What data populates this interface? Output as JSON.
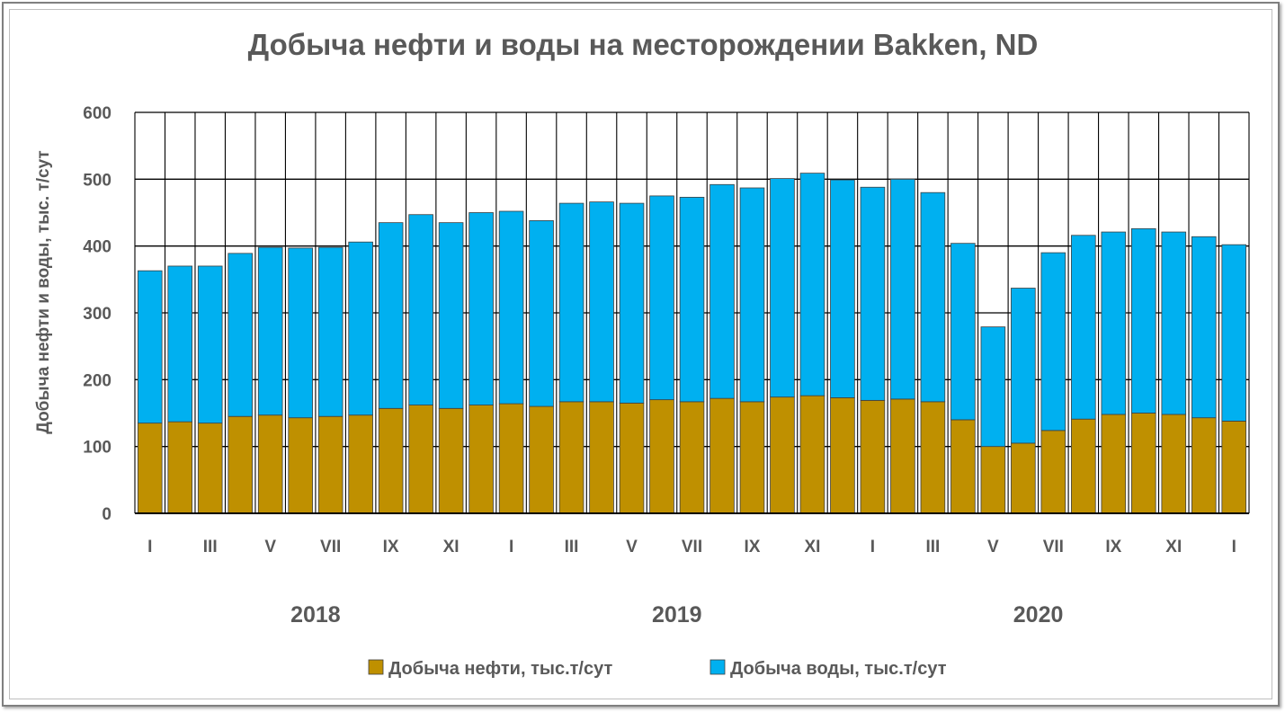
{
  "chart_data": {
    "type": "bar",
    "stacked": true,
    "title": "Добыча нефти и воды на месторождении Bakken, ND",
    "ylabel": "Добыча нефти и воды, тыс. т/сут",
    "xlabel": "",
    "ylim": [
      0,
      600
    ],
    "yticks": [
      0,
      100,
      200,
      300,
      400,
      500,
      600
    ],
    "grid": true,
    "legend_position": "bottom",
    "x_tick_labels": [
      "I",
      "III",
      "V",
      "VII",
      "IX",
      "XI",
      "I",
      "III",
      "V",
      "VII",
      "IX",
      "XI",
      "I",
      "III",
      "V",
      "VII",
      "IX",
      "XI",
      "I"
    ],
    "years": [
      "2018",
      "2019",
      "2020"
    ],
    "categories": [
      "2018-01",
      "2018-02",
      "2018-03",
      "2018-04",
      "2018-05",
      "2018-06",
      "2018-07",
      "2018-08",
      "2018-09",
      "2018-10",
      "2018-11",
      "2018-12",
      "2019-01",
      "2019-02",
      "2019-03",
      "2019-04",
      "2019-05",
      "2019-06",
      "2019-07",
      "2019-08",
      "2019-09",
      "2019-10",
      "2019-11",
      "2019-12",
      "2020-01",
      "2020-02",
      "2020-03",
      "2020-04",
      "2020-05",
      "2020-06",
      "2020-07",
      "2020-08",
      "2020-09",
      "2020-10",
      "2020-11",
      "2020-12",
      "2021-01"
    ],
    "series": [
      {
        "name": "Добыча нефти, тыс.т/сут",
        "color": "#bf9000",
        "values": [
          135,
          137,
          135,
          145,
          147,
          143,
          145,
          147,
          157,
          162,
          157,
          162,
          164,
          160,
          167,
          167,
          165,
          170,
          167,
          172,
          167,
          174,
          176,
          173,
          169,
          171,
          167,
          140,
          100,
          105,
          124,
          141,
          148,
          150,
          148,
          143,
          138
        ]
      },
      {
        "name": "Добыча воды, тыс.т/сут",
        "color": "#00b0f0",
        "values": [
          228,
          233,
          235,
          244,
          251,
          254,
          253,
          259,
          278,
          285,
          278,
          288,
          288,
          278,
          297,
          299,
          299,
          305,
          306,
          320,
          320,
          327,
          333,
          326,
          319,
          329,
          313,
          264,
          179,
          232,
          266,
          275,
          273,
          276,
          273,
          271,
          264
        ]
      }
    ]
  }
}
